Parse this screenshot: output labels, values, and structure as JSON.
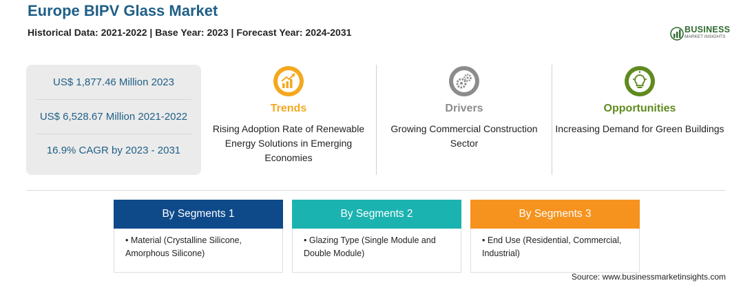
{
  "header": {
    "title": "Europe BIPV Glass Market",
    "subtitle": "Historical Data: 2021-2022 | Base Year: 2023 | Forecast Year: 2024-2031"
  },
  "logo": {
    "word": "BUSINESS",
    "sub": "MARKET INSIGHTS",
    "color": "#2f6b2f"
  },
  "stats": [
    "US$ 1,877.46 Million 2023",
    "US$ 6,528.67 Million 2021-2022",
    "16.9% CAGR by 2023 - 2031"
  ],
  "features": [
    {
      "title": "Trends",
      "desc": "Rising Adoption Rate of Renewable Energy Solutions in Emerging Economies",
      "color": "#f4a81d",
      "icon": "trending-chart-icon"
    },
    {
      "title": "Drivers",
      "desc": "Growing Commercial Construction Sector",
      "color": "#8c8c8c",
      "icon": "gears-icon"
    },
    {
      "title": "Opportunities",
      "desc": "Increasing Demand for Green Buildings",
      "color": "#5f8a1e",
      "icon": "lightbulb-icon"
    }
  ],
  "segments": [
    {
      "title": "By Segments 1",
      "item": "Material (Crystalline Silicone, Amorphous Silicone)",
      "color": "#0e4a8a"
    },
    {
      "title": "By Segments 2",
      "item": "Glazing Type (Single Module and Double Module)",
      "color": "#1bb3b0"
    },
    {
      "title": "By Segments 3",
      "item": "End Use (Residential, Commercial, Industrial)",
      "color": "#f6921e"
    }
  ],
  "source": "Source: www.businessmarketinsights.com"
}
